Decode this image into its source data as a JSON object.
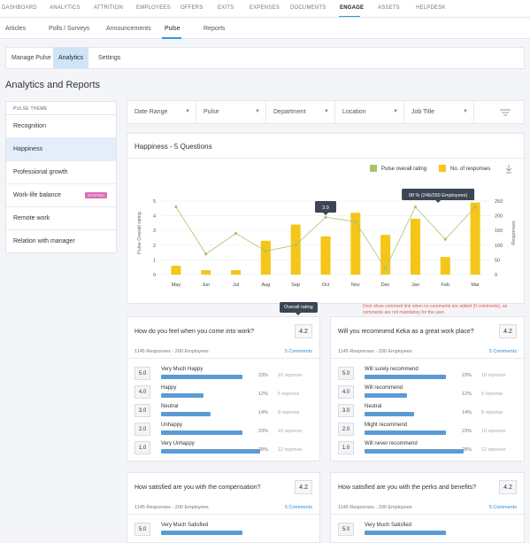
{
  "topnav": [
    "DASHBOARD",
    "ANALYTICS",
    "ATTRITION",
    "EMPLOYEES",
    "OFFERS",
    "EXITS",
    "EXPENSES",
    "DOCUMENTS",
    "ENGAGE",
    "ASSETS",
    "HELPDESK"
  ],
  "subnav": [
    "Articles",
    "Polls / Surveys",
    "Announcements",
    "Pulse",
    "Reports"
  ],
  "pills": [
    "Manage Pulse",
    "Analytics",
    "Settings"
  ],
  "page_title": "Analytics and Reports",
  "sidebar": {
    "header": "PULSE THEME",
    "items": [
      "Recognition",
      "Happiness",
      "Professional growth",
      "Work-life balance",
      "Remote work",
      "Relation with manager"
    ],
    "badge": "STOPPED"
  },
  "filters": [
    "Date Range",
    "Pulse",
    "Department",
    "Location",
    "Job Title"
  ],
  "chart_card": {
    "title": "Happiness - 5 Questions"
  },
  "chart_data": {
    "type": "bar",
    "categories": [
      "May",
      "Jun",
      "Jul",
      "Aug",
      "Sep",
      "Oct",
      "Nov",
      "Dec",
      "Jan",
      "Feb",
      "Mar"
    ],
    "series": [
      {
        "name": "No. of responses",
        "type": "bar",
        "axis": "right",
        "color": "#f5c518",
        "values": [
          30,
          15,
          15,
          115,
          170,
          130,
          210,
          135,
          190,
          60,
          245
        ]
      },
      {
        "name": "Pulse overall rating",
        "type": "line",
        "axis": "left",
        "color": "#a9c46c",
        "values": [
          4.6,
          1.4,
          2.8,
          1.6,
          2.0,
          3.9,
          3.6,
          0.4,
          4.6,
          2.4,
          4.6
        ]
      }
    ],
    "ylabel": "Pulse Overall rating",
    "y2label": "Responses",
    "ylim": [
      0,
      5
    ],
    "y2lim": [
      0,
      250
    ],
    "yticks": [
      "0",
      "1",
      "2",
      "3",
      "4",
      "5"
    ],
    "y2ticks": [
      "0",
      "50",
      "100",
      "150",
      "200",
      "250"
    ],
    "legend_position": "top-right",
    "annotations": [
      "3.9",
      "98 % (246/250 Employees)"
    ]
  },
  "note": "Dont show comment link when no comments are added (0 comments), as comments are not mandatory for the user.",
  "tooltip_overall": "Overall rating",
  "questions": [
    {
      "q": "How do you feel when you come into work?",
      "score": "4.2",
      "meta": "1145 Responses - 200 Employees",
      "comments": "5 Comments",
      "rows": [
        {
          "v": "5.0",
          "l": "Very Much Happy",
          "p": "23%",
          "r": "10 reponse",
          "w": 23
        },
        {
          "v": "4.0",
          "l": "Happy",
          "p": "12%",
          "r": "5 reponse",
          "w": 12
        },
        {
          "v": "3.0",
          "l": "Neutral",
          "p": "14%",
          "r": "8 reponse",
          "w": 14
        },
        {
          "v": "2.0",
          "l": "Unhappy",
          "p": "23%",
          "r": "10 reponse",
          "w": 23
        },
        {
          "v": "1.0",
          "l": "Very Unhappy",
          "p": "28%",
          "r": "12 reponse",
          "w": 28
        }
      ]
    },
    {
      "q": "Will you recommend Keka as a great work place?",
      "score": "4.2",
      "meta": "1145 Responses - 200 Employees",
      "comments": "5 Comments",
      "rows": [
        {
          "v": "5.0",
          "l": "Will surely recommend",
          "p": "23%",
          "r": "10 reponse",
          "w": 23
        },
        {
          "v": "4.0",
          "l": "Will recommend",
          "p": "12%",
          "r": "5 reponse",
          "w": 12
        },
        {
          "v": "3.0",
          "l": "Neutral",
          "p": "14%",
          "r": "8 reponse",
          "w": 14
        },
        {
          "v": "2.0",
          "l": "Might recommend",
          "p": "23%",
          "r": "10 reponse",
          "w": 23
        },
        {
          "v": "1.0",
          "l": "Will never recommend",
          "p": "28%",
          "r": "12 reponse",
          "w": 28
        }
      ]
    },
    {
      "q": "How satisfied are you with the compensation?",
      "score": "4.2",
      "meta": "1145 Responses - 200 Employees",
      "comments": "5 Comments",
      "rows": [
        {
          "v": "5.0",
          "l": "Very Much Satisfied",
          "p": "",
          "r": "",
          "w": 23
        }
      ]
    },
    {
      "q": "How satisfied are you with the perks and benefits?",
      "score": "4.2",
      "meta": "1145 Responses - 200 Employees",
      "comments": "5 Comments",
      "rows": [
        {
          "v": "5.0",
          "l": "Very Much Satisfied",
          "p": "",
          "r": "",
          "w": 23
        }
      ]
    }
  ]
}
